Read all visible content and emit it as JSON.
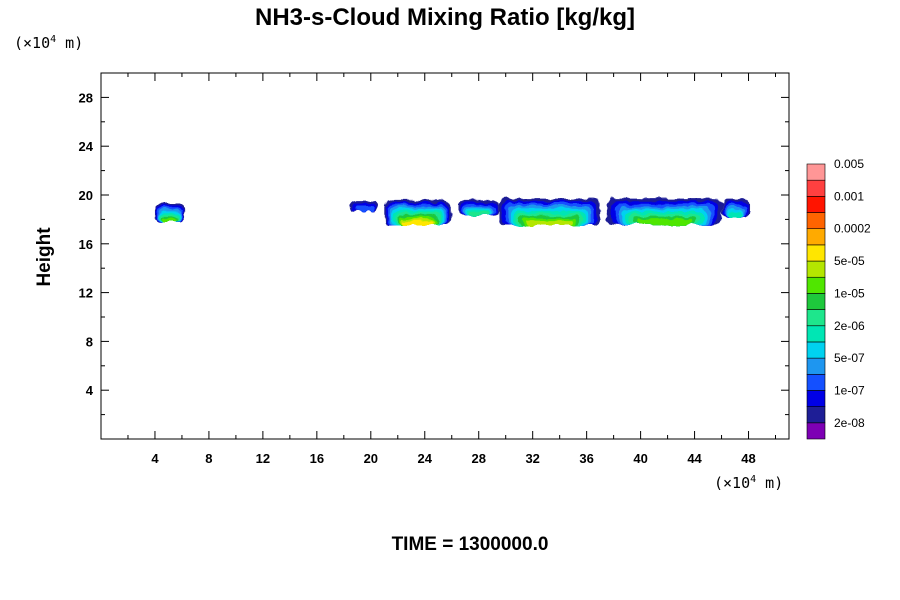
{
  "chart_data": {
    "type": "heatmap",
    "title": "NH3-s-Cloud Mixing Ratio [kg/kg]",
    "ylabel": "Height",
    "x_unit_prefix": "(×10",
    "x_unit_exp": "4",
    "x_unit_suffix": " m)",
    "y_unit_prefix": "(×10",
    "y_unit_exp": "4",
    "y_unit_suffix": " m)",
    "xlim": [
      0,
      51
    ],
    "ylim": [
      0,
      30
    ],
    "x_ticks": [
      4,
      8,
      12,
      16,
      20,
      24,
      28,
      32,
      36,
      40,
      44,
      48
    ],
    "y_ticks": [
      4,
      8,
      12,
      16,
      20,
      24,
      28
    ],
    "time_label": "TIME = 1300000.0",
    "colorbar": {
      "colors": [
        "#7d00b4",
        "#1e1e96",
        "#0000e6",
        "#1450ff",
        "#1e96f0",
        "#00d2f0",
        "#00e6b4",
        "#1ee68c",
        "#1ec83c",
        "#50e600",
        "#b4e600",
        "#ffe600",
        "#ffaa00",
        "#ff6400",
        "#ff1400",
        "#ff4040",
        "#ff9696"
      ],
      "labels": [
        "2e-08",
        "1e-07",
        "5e-07",
        "2e-06",
        "1e-05",
        "5e-05",
        "0.0002",
        "0.001",
        "0.005"
      ]
    },
    "regions": [
      {
        "x": [
          4.0,
          6.2
        ],
        "y": [
          17.8,
          19.3
        ],
        "level": 9
      },
      {
        "x": [
          18.5,
          20.5
        ],
        "y": [
          18.7,
          19.5
        ],
        "level": 3
      },
      {
        "x": [
          21.0,
          26.0
        ],
        "y": [
          17.5,
          19.6
        ],
        "level": 11
      },
      {
        "x": [
          26.5,
          29.5
        ],
        "y": [
          18.3,
          19.6
        ],
        "level": 7
      },
      {
        "x": [
          29.5,
          37.0
        ],
        "y": [
          17.5,
          19.7
        ],
        "level": 10
      },
      {
        "x": [
          37.5,
          46.0
        ],
        "y": [
          17.6,
          19.7
        ],
        "level": 9
      },
      {
        "x": [
          46.0,
          48.0
        ],
        "y": [
          18.2,
          19.7
        ],
        "level": 6
      }
    ]
  }
}
